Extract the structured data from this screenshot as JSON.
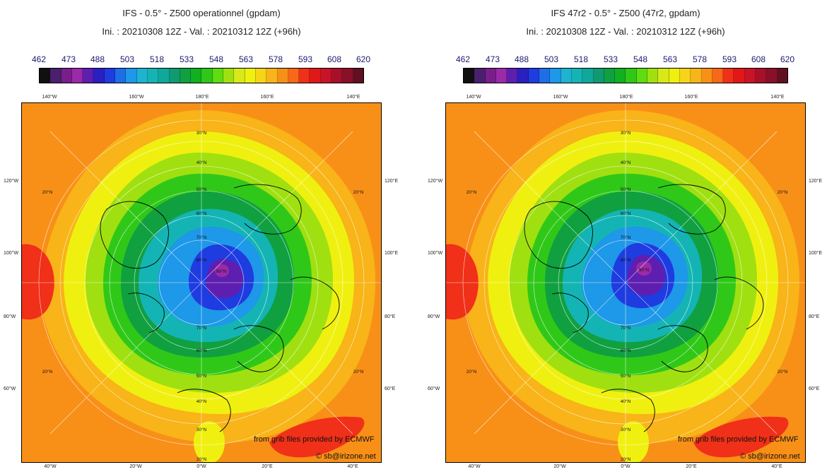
{
  "panels": [
    {
      "title": "IFS - 0.5° - Z500 operationnel (gpdam)",
      "subtitle": "Ini. : 20210308 12Z - Val. : 20210312 12Z (+96h)"
    },
    {
      "title": "IFS 47r2 - 0.5° - Z500 (47r2, gpdam)",
      "subtitle": "Ini. : 20210308 12Z - Val. : 20210312 12Z (+96h)"
    }
  ],
  "colorbar": {
    "labels": [
      "462",
      "473",
      "488",
      "503",
      "518",
      "533",
      "548",
      "563",
      "578",
      "593",
      "608",
      "620"
    ],
    "colors": [
      "#101010",
      "#4a1f6e",
      "#7a1e8c",
      "#9b2aa8",
      "#5e1fb0",
      "#2a1fc0",
      "#1e3ce0",
      "#1e6ee8",
      "#1e98e8",
      "#1eb4d0",
      "#14b4b4",
      "#10a89a",
      "#109a70",
      "#10a040",
      "#10b020",
      "#30c818",
      "#60dc10",
      "#a0e010",
      "#d8e818",
      "#f0f010",
      "#f8d418",
      "#f8b418",
      "#f89018",
      "#f86818",
      "#f03018",
      "#e01818",
      "#c81428",
      "#a8102a",
      "#881028",
      "#601020"
    ]
  },
  "map": {
    "top_lon_labels": [
      "140°W",
      "160°W",
      "180°E",
      "160°E",
      "140°E"
    ],
    "bottom_lon_labels": [
      "40°W",
      "20°W",
      "0°W",
      "20°E",
      "40°E"
    ],
    "left_labels": [
      "120°W",
      "100°W",
      "80°W",
      "60°W"
    ],
    "right_labels": [
      "120°E",
      "100°E",
      "80°E",
      "60°E"
    ],
    "lat_labels": [
      "20°N",
      "30°N",
      "40°N",
      "50°N",
      "60°N",
      "70°N",
      "80°N",
      "90°N"
    ],
    "credit_grib": "from grib files provided by ECMWF",
    "credit_site": "© sb@irizone.net"
  }
}
